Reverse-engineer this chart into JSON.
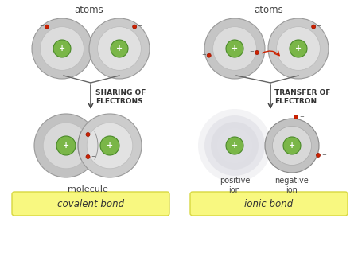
{
  "bg_color": "#ffffff",
  "outer_edge_color": "#999999",
  "inner_edge_color": "#bbbbbb",
  "nucleus_color": "#7ab648",
  "nucleus_edge": "#4a8a28",
  "electron_color": "#cc2200",
  "electron_edge": "#991100",
  "label_color": "#444444",
  "arrow_color": "#444444",
  "transfer_arrow_color": "#cc2200",
  "bond_label_bg": "#f8f880",
  "bond_label_edge": "#d8d840",
  "atoms_label": "atoms",
  "sharing_text": "SHARING OF\nELECTRONS",
  "transfer_text": "TRANSFER OF\nELECTRON",
  "molecule_label": "molecule",
  "positive_ion_label": "positive\nion",
  "negative_ion_label": "negative\nion",
  "covalent_label": "covalent bond",
  "ionic_label": "ionic bond"
}
